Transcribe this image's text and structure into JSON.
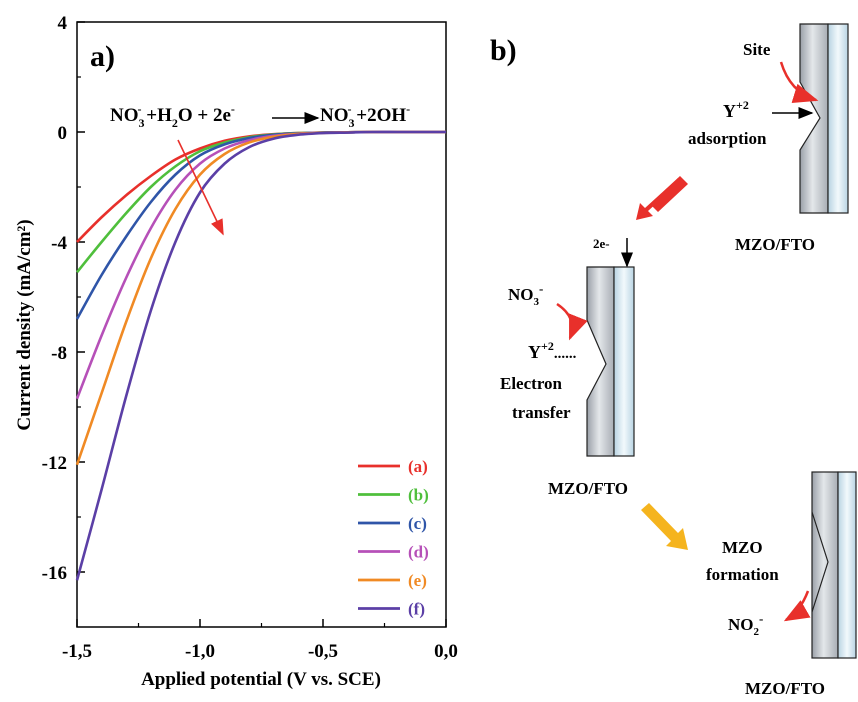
{
  "panel_a": {
    "label": "a)",
    "equation": {
      "lhs_1": "NO",
      "lhs_1_sub": "3",
      "lhs_1_sup": "-",
      "lhs_2": " +H",
      "lhs_2_sub": "2",
      "lhs_3": "O + 2e",
      "lhs_3_sup": "-",
      "rhs_1": "NO",
      "rhs_1_sub": "3",
      "rhs_1_sup": "-",
      "rhs_2": " +2OH",
      "rhs_2_sup": "-"
    },
    "chart_data": {
      "type": "line",
      "xlabel": "Applied potential (V vs. SCE)",
      "ylabel": "Current density (mA/cm²)",
      "xlim": [
        -1.5,
        0.0
      ],
      "ylim": [
        -18,
        4
      ],
      "xticks": [
        "-1,5",
        "-1,0",
        "-0,5",
        "0,0"
      ],
      "yticks": [
        "4",
        "0",
        "-4",
        "-8",
        "-12",
        "-16"
      ],
      "legend_placement": "bottom-right",
      "series": [
        {
          "name": "(a)",
          "color": "#e8302b",
          "x": [
            -1.5,
            -1.4,
            -1.3,
            -1.2,
            -1.1,
            -1.0,
            -0.9,
            -0.8,
            -0.7,
            -0.6,
            -0.5,
            -0.4,
            -0.3,
            -0.2,
            -0.1,
            0.0
          ],
          "values": [
            -4.0,
            -3.1,
            -2.3,
            -1.6,
            -1.0,
            -0.6,
            -0.32,
            -0.16,
            -0.08,
            -0.04,
            -0.02,
            -0.01,
            0,
            0,
            0,
            0
          ]
        },
        {
          "name": "(b)",
          "color": "#4fbf3c",
          "x": [
            -1.5,
            -1.4,
            -1.3,
            -1.2,
            -1.1,
            -1.0,
            -0.9,
            -0.8,
            -0.7,
            -0.6,
            -0.5,
            -0.4,
            -0.3,
            -0.2,
            -0.1,
            0.0
          ],
          "values": [
            -5.1,
            -4.0,
            -2.95,
            -2.0,
            -1.25,
            -0.7,
            -0.38,
            -0.19,
            -0.09,
            -0.04,
            -0.02,
            -0.01,
            0,
            0,
            0,
            0
          ]
        },
        {
          "name": "(c)",
          "color": "#2f55a8",
          "x": [
            -1.5,
            -1.4,
            -1.3,
            -1.2,
            -1.1,
            -1.0,
            -0.9,
            -0.8,
            -0.7,
            -0.6,
            -0.5,
            -0.4,
            -0.3,
            -0.2,
            -0.1,
            0.0
          ],
          "values": [
            -6.8,
            -5.2,
            -3.8,
            -2.55,
            -1.55,
            -0.85,
            -0.45,
            -0.22,
            -0.1,
            -0.05,
            -0.02,
            -0.01,
            0,
            0,
            0,
            0
          ]
        },
        {
          "name": "(d)",
          "color": "#b650b8",
          "x": [
            -1.5,
            -1.4,
            -1.3,
            -1.2,
            -1.1,
            -1.0,
            -0.9,
            -0.8,
            -0.7,
            -0.6,
            -0.5,
            -0.4,
            -0.3,
            -0.2,
            -0.1,
            0.0
          ],
          "values": [
            -9.7,
            -7.4,
            -5.3,
            -3.5,
            -2.1,
            -1.15,
            -0.6,
            -0.3,
            -0.14,
            -0.06,
            -0.03,
            -0.01,
            0,
            0,
            0,
            0
          ]
        },
        {
          "name": "(e)",
          "color": "#f08a24",
          "x": [
            -1.5,
            -1.4,
            -1.3,
            -1.2,
            -1.1,
            -1.0,
            -0.9,
            -0.8,
            -0.7,
            -0.6,
            -0.5,
            -0.4,
            -0.3,
            -0.2,
            -0.1,
            0.0
          ],
          "values": [
            -12.1,
            -9.5,
            -6.9,
            -4.6,
            -2.8,
            -1.55,
            -0.8,
            -0.38,
            -0.17,
            -0.07,
            -0.03,
            -0.01,
            0,
            0,
            0,
            0
          ]
        },
        {
          "name": "(f)",
          "color": "#5b3fa6",
          "x": [
            -1.5,
            -1.4,
            -1.3,
            -1.2,
            -1.1,
            -1.0,
            -0.9,
            -0.8,
            -0.7,
            -0.6,
            -0.5,
            -0.4,
            -0.3,
            -0.2,
            -0.1,
            0.0
          ],
          "values": [
            -16.3,
            -13.0,
            -9.6,
            -6.5,
            -4.0,
            -2.2,
            -1.15,
            -0.55,
            -0.24,
            -0.1,
            -0.04,
            -0.02,
            0,
            0,
            0,
            0
          ]
        }
      ]
    }
  },
  "panel_b": {
    "label": "b)",
    "top": {
      "site": "Site",
      "y": "Y",
      "y_sup": "+2",
      "adsorption": "adsorption",
      "caption": "MZO/FTO"
    },
    "middle": {
      "electrons": "2e-",
      "no3": "NO",
      "no3_sub": "3",
      "no3_sup": "-",
      "y": "Y",
      "y_sup": "+2",
      "dots": "......",
      "electron": "Electron",
      "transfer": "transfer",
      "caption": "MZO/FTO"
    },
    "bottom": {
      "mzo": "MZO",
      "formation": "formation",
      "no2": "NO",
      "no2_sub": "2",
      "no2_sup": "-",
      "caption": "MZO/FTO"
    },
    "colors": {
      "red_arrow": "#e8302b",
      "yellow_arrow": "#f5b41e",
      "electrode_gray": "#c8ccd2",
      "fto_blue": "#dfeef6"
    }
  }
}
